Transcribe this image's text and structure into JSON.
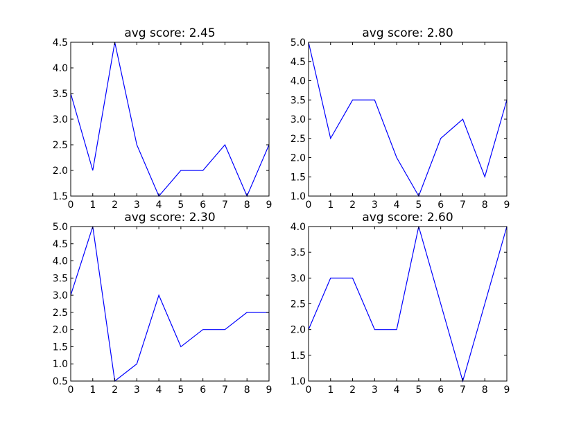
{
  "chart_data": [
    {
      "type": "line",
      "title": "avg score: 2.45",
      "xlabel": "",
      "ylabel": "",
      "xlim": [
        0,
        9
      ],
      "ylim": [
        1.5,
        4.5
      ],
      "xticks": [
        "0",
        "1",
        "2",
        "3",
        "4",
        "5",
        "6",
        "7",
        "8",
        "9"
      ],
      "yticks": [
        "1.5",
        "2.0",
        "2.5",
        "3.0",
        "3.5",
        "4.0",
        "4.5"
      ],
      "grid": false,
      "x": [
        0,
        1,
        2,
        3,
        4,
        5,
        6,
        7,
        8,
        9
      ],
      "series": [
        {
          "values": [
            3.5,
            2.0,
            4.5,
            2.5,
            1.5,
            2.0,
            2.0,
            2.5,
            1.5,
            2.5
          ],
          "color": "#0000ff"
        }
      ]
    },
    {
      "type": "line",
      "title": "avg score: 2.80",
      "xlabel": "",
      "ylabel": "",
      "xlim": [
        0,
        9
      ],
      "ylim": [
        1.0,
        5.0
      ],
      "xticks": [
        "0",
        "1",
        "2",
        "3",
        "4",
        "5",
        "6",
        "7",
        "8",
        "9"
      ],
      "yticks": [
        "1.0",
        "1.5",
        "2.0",
        "2.5",
        "3.0",
        "3.5",
        "4.0",
        "4.5",
        "5.0"
      ],
      "grid": false,
      "x": [
        0,
        1,
        2,
        3,
        4,
        5,
        6,
        7,
        8,
        9
      ],
      "series": [
        {
          "values": [
            5.0,
            2.5,
            3.5,
            3.5,
            2.0,
            1.0,
            2.5,
            3.0,
            1.5,
            3.5
          ],
          "color": "#0000ff"
        }
      ]
    },
    {
      "type": "line",
      "title": "avg score: 2.30",
      "xlabel": "",
      "ylabel": "",
      "xlim": [
        0,
        9
      ],
      "ylim": [
        0.5,
        5.0
      ],
      "xticks": [
        "0",
        "1",
        "2",
        "3",
        "4",
        "5",
        "6",
        "7",
        "8",
        "9"
      ],
      "yticks": [
        "0.5",
        "1.0",
        "1.5",
        "2.0",
        "2.5",
        "3.0",
        "3.5",
        "4.0",
        "4.5",
        "5.0"
      ],
      "grid": false,
      "x": [
        0,
        1,
        2,
        3,
        4,
        5,
        6,
        7,
        8,
        9
      ],
      "series": [
        {
          "values": [
            3.0,
            5.0,
            0.5,
            1.0,
            3.0,
            1.5,
            2.0,
            2.0,
            2.5,
            2.5
          ],
          "color": "#0000ff"
        }
      ]
    },
    {
      "type": "line",
      "title": "avg score: 2.60",
      "xlabel": "",
      "ylabel": "",
      "xlim": [
        0,
        9
      ],
      "ylim": [
        1.0,
        4.0
      ],
      "xticks": [
        "0",
        "1",
        "2",
        "3",
        "4",
        "5",
        "6",
        "7",
        "8",
        "9"
      ],
      "yticks": [
        "1.0",
        "1.5",
        "2.0",
        "2.5",
        "3.0",
        "3.5",
        "4.0"
      ],
      "grid": false,
      "x": [
        0,
        1,
        2,
        3,
        4,
        5,
        6,
        7,
        8,
        9
      ],
      "series": [
        {
          "values": [
            2.0,
            3.0,
            3.0,
            2.0,
            2.0,
            4.0,
            2.5,
            1.0,
            2.5,
            4.0
          ],
          "color": "#0000ff"
        }
      ]
    }
  ]
}
